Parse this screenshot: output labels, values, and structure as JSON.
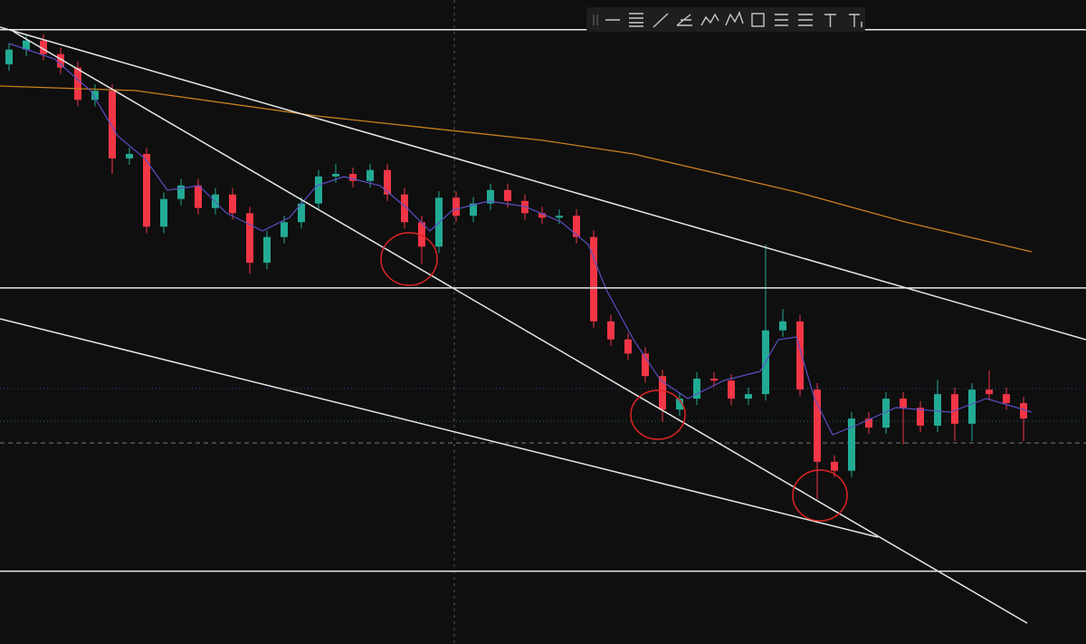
{
  "chart_data": {
    "type": "candlestick",
    "ylim": [
      0,
      100
    ],
    "up_color": "#22ab94",
    "down_color": "#f23645",
    "open": [
      90.0,
      92.3,
      93.7,
      91.6,
      89.5,
      84.5,
      85.9,
      75.4,
      76.1,
      64.8,
      69.1,
      71.2,
      67.7,
      69.8,
      66.9,
      59.2,
      63.2,
      65.5,
      68.4,
      72.6,
      73.0,
      71.9,
      73.6,
      69.8,
      65.5,
      61.7,
      69.3,
      66.5,
      68.4,
      70.5,
      68.8,
      66.9,
      66.2,
      66.5,
      63.2,
      50.1,
      47.3,
      45.1,
      41.6,
      36.4,
      38.1,
      41.2,
      40.9,
      38.1,
      38.8,
      48.7,
      50.1,
      39.5,
      28.3,
      26.9,
      35.0,
      33.6,
      38.1,
      36.7,
      33.9,
      38.8,
      34.2,
      39.5,
      38.8,
      37.4
    ],
    "high": [
      93.3,
      94.7,
      94.7,
      92.6,
      90.5,
      86.9,
      86.9,
      77.1,
      77.1,
      70.1,
      72.2,
      72.2,
      70.8,
      70.8,
      67.9,
      64.2,
      66.5,
      69.4,
      73.6,
      74.6,
      74.0,
      74.6,
      74.6,
      70.8,
      66.5,
      70.3,
      70.3,
      69.4,
      71.5,
      71.5,
      69.8,
      67.9,
      67.5,
      67.5,
      64.2,
      51.1,
      48.3,
      46.1,
      42.6,
      39.1,
      42.2,
      42.2,
      41.9,
      39.8,
      62.0,
      52.0,
      51.1,
      40.5,
      29.3,
      36.0,
      36.0,
      39.1,
      39.1,
      37.7,
      41.0,
      39.8,
      40.5,
      42.5,
      39.8,
      38.4
    ],
    "low": [
      89.0,
      91.3,
      90.6,
      88.5,
      83.5,
      83.5,
      73.0,
      74.4,
      63.8,
      63.8,
      68.1,
      66.7,
      66.7,
      65.9,
      57.5,
      58.2,
      62.2,
      64.5,
      67.4,
      71.6,
      70.9,
      70.9,
      68.8,
      64.5,
      59.0,
      60.7,
      65.5,
      65.5,
      67.4,
      67.8,
      65.9,
      65.2,
      65.2,
      62.2,
      49.1,
      46.3,
      44.1,
      40.6,
      34.5,
      35.4,
      37.1,
      39.9,
      37.1,
      37.1,
      37.8,
      47.7,
      38.5,
      22.5,
      25.9,
      25.9,
      32.6,
      32.6,
      31.0,
      32.9,
      32.9,
      31.5,
      31.5,
      37.8,
      36.4,
      31.5
    ],
    "close": [
      92.3,
      93.7,
      91.6,
      89.5,
      84.5,
      85.9,
      75.4,
      76.1,
      64.8,
      69.1,
      71.2,
      67.7,
      69.8,
      66.9,
      59.2,
      63.2,
      65.5,
      68.4,
      72.6,
      73.0,
      71.9,
      73.6,
      69.8,
      65.5,
      61.7,
      69.3,
      66.5,
      68.4,
      70.5,
      68.8,
      66.9,
      66.2,
      66.5,
      63.2,
      50.1,
      47.3,
      45.1,
      41.6,
      36.4,
      38.1,
      41.2,
      40.9,
      38.1,
      38.8,
      48.7,
      50.1,
      39.5,
      28.3,
      26.9,
      35.0,
      33.6,
      38.1,
      36.7,
      33.9,
      38.8,
      34.2,
      39.5,
      38.8,
      37.4,
      35.0
    ],
    "levels": [
      95.4,
      55.3,
      11.3
    ],
    "level_color": "#e8e8e8"
  }
}
